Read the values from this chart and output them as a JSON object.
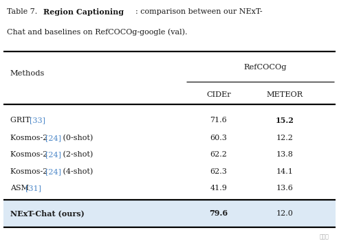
{
  "caption_line1_parts": [
    {
      "text": "Table 7.  ",
      "bold": false
    },
    {
      "text": "Region Captioning",
      "bold": true
    },
    {
      "text": ": comparison between our NExT-",
      "bold": false
    }
  ],
  "caption_line2": "Chat and baselines on RefCOCOg-google (val).",
  "group_header": "RefCOCOg",
  "col_headers": [
    "CIDEr",
    "METEOR"
  ],
  "rows": [
    {
      "method": "GRIT ",
      "ref": "[33]",
      "ref_suffix": "",
      "cider": "71.6",
      "meteor": "15.2",
      "bold_cider": false,
      "bold_meteor": true
    },
    {
      "method": "Kosmos-2 ",
      "ref": "[24]",
      "ref_suffix": " (0-shot)",
      "cider": "60.3",
      "meteor": "12.2",
      "bold_cider": false,
      "bold_meteor": false
    },
    {
      "method": "Kosmos-2 ",
      "ref": "[24]",
      "ref_suffix": " (2-shot)",
      "cider": "62.2",
      "meteor": "13.8",
      "bold_cider": false,
      "bold_meteor": false
    },
    {
      "method": "Kosmos-2 ",
      "ref": "[24]",
      "ref_suffix": " (4-shot)",
      "cider": "62.3",
      "meteor": "14.1",
      "bold_cider": false,
      "bold_meteor": false
    },
    {
      "method": "ASM ",
      "ref": "[31]",
      "ref_suffix": "",
      "cider": "41.9",
      "meteor": "13.6",
      "bold_cider": false,
      "bold_meteor": false
    }
  ],
  "ours_row": {
    "method": "NExT-Chat (ours)",
    "cider": "79.6",
    "meteor": "12.0",
    "bold_cider": true,
    "bold_meteor": false
  },
  "bg_color": "#ffffff",
  "ours_bg_color": "#dce9f5",
  "ref_color": "#4a86c8",
  "text_color": "#1a1a1a",
  "watermark": "量子位"
}
